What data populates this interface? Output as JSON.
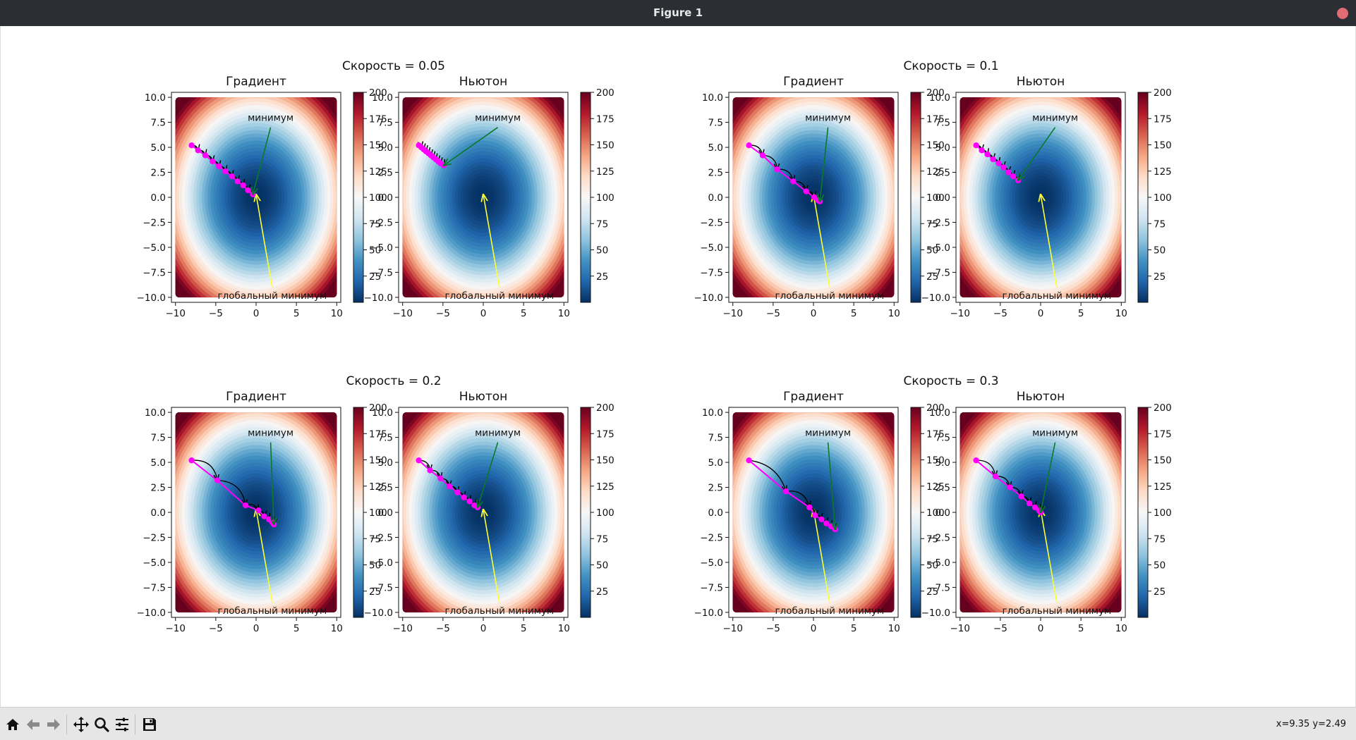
{
  "window": {
    "title": "Figure 1"
  },
  "toolbar": {
    "buttons": [
      "home-icon",
      "back-icon",
      "forward-icon",
      "pan-icon",
      "zoom-icon",
      "configure-subplots-icon",
      "save-icon"
    ],
    "coords": "x=9.35 y=2.49"
  },
  "colorbar": {
    "ticks": [
      25,
      50,
      75,
      100,
      125,
      150,
      175,
      200
    ],
    "vmin": 0,
    "vmax": 200,
    "colormap": "RdBu_r"
  },
  "axes": {
    "xticks": [
      -10,
      -5,
      0,
      5,
      10
    ],
    "yticks": [
      -10.0,
      -7.5,
      -5.0,
      -2.5,
      0.0,
      2.5,
      5.0,
      7.5,
      10.0
    ],
    "xlim": [
      -10.5,
      10.5
    ],
    "ylim": [
      -10.5,
      10.5
    ]
  },
  "annotations": {
    "global_min_label": "глобальный минимум",
    "global_min_point": [
      0,
      0
    ],
    "global_min_text_at": [
      2,
      -9
    ],
    "min_label": "минимум",
    "min_text_at": [
      1.8,
      7.0
    ],
    "colors": {
      "global": "#ffff33",
      "min": "#0a7a2a",
      "path": "#ff00ff",
      "arrow": "#000000"
    }
  },
  "chart_data": [
    {
      "type": "line",
      "title": "Скорость = 0.05",
      "grid": false,
      "panels": [
        {
          "title": "Градиент",
          "series": [
            {
              "x": [
                -8,
                -7.2,
                -6.3,
                -5.4,
                -4.6,
                -3.8,
                -3.0,
                -2.3,
                -1.6,
                -1.0,
                -0.4
              ],
              "y": [
                5.2,
                4.7,
                4.2,
                3.6,
                3.1,
                2.6,
                2.1,
                1.6,
                1.2,
                0.7,
                0.3
              ]
            }
          ],
          "min_point": [
            -0.4,
            0.3
          ]
        },
        {
          "title": "Ньютон",
          "series": [
            {
              "x": [
                -8,
                -7.7,
                -7.4,
                -7.1,
                -6.8,
                -6.5,
                -6.2,
                -5.9,
                -5.6,
                -5.3,
                -4.9
              ],
              "y": [
                5.2,
                5.0,
                4.8,
                4.6,
                4.4,
                4.2,
                4.0,
                3.8,
                3.6,
                3.4,
                3.2
              ]
            }
          ],
          "min_point": [
            -4.9,
            3.2
          ]
        }
      ]
    },
    {
      "type": "line",
      "title": "Скорость = 0.1",
      "grid": false,
      "panels": [
        {
          "title": "Градиент",
          "series": [
            {
              "x": [
                -8,
                -6.3,
                -4.5,
                -2.5,
                -0.9,
                0.1,
                0.6,
                0.8
              ],
              "y": [
                5.2,
                4.2,
                2.8,
                1.6,
                0.6,
                0.0,
                -0.3,
                -0.4
              ]
            }
          ],
          "min_point": [
            0.8,
            -0.4
          ]
        },
        {
          "title": "Ньютон",
          "series": [
            {
              "x": [
                -8,
                -7.3,
                -6.6,
                -5.9,
                -5.2,
                -4.6,
                -4.0,
                -3.4,
                -2.8
              ],
              "y": [
                5.2,
                4.7,
                4.3,
                3.8,
                3.4,
                3.0,
                2.5,
                2.1,
                1.7
              ]
            }
          ],
          "min_point": [
            -2.8,
            1.7
          ]
        }
      ]
    },
    {
      "type": "line",
      "title": "Скорость = 0.2",
      "grid": false,
      "panels": [
        {
          "title": "Градиент",
          "series": [
            {
              "x": [
                -8,
                -4.8,
                -1.3,
                0.3,
                1.0,
                1.6,
                2.0,
                2.2
              ],
              "y": [
                5.2,
                3.2,
                0.7,
                0.2,
                -0.4,
                -0.7,
                -1.0,
                -1.2
              ]
            }
          ],
          "min_point": [
            2.2,
            -1.2
          ]
        },
        {
          "title": "Ньютон",
          "series": [
            {
              "x": [
                -8,
                -6.6,
                -5.3,
                -4.2,
                -3.2,
                -2.4,
                -1.7,
                -1.1,
                -0.7
              ],
              "y": [
                5.2,
                4.2,
                3.4,
                2.6,
                2.0,
                1.5,
                1.1,
                0.7,
                0.5
              ]
            }
          ],
          "min_point": [
            -0.7,
            0.5
          ]
        }
      ]
    },
    {
      "type": "line",
      "title": "Скорость = 0.3",
      "grid": false,
      "panels": [
        {
          "title": "Градиент",
          "series": [
            {
              "x": [
                -8,
                -3.4,
                -0.5,
                0.2,
                1.0,
                1.6,
                2.2,
                2.7
              ],
              "y": [
                5.2,
                2.1,
                0.5,
                -0.3,
                -0.7,
                -1.1,
                -1.4,
                -1.7
              ]
            }
          ],
          "min_point": [
            2.7,
            -1.7
          ]
        },
        {
          "title": "Ньютон",
          "series": [
            {
              "x": [
                -8,
                -5.6,
                -3.8,
                -2.4,
                -1.4,
                -0.7,
                -0.2,
                0.0
              ],
              "y": [
                5.2,
                3.6,
                2.5,
                1.6,
                0.9,
                0.5,
                0.2,
                0.0
              ]
            }
          ],
          "min_point": [
            0.0,
            0.0
          ]
        }
      ]
    }
  ]
}
